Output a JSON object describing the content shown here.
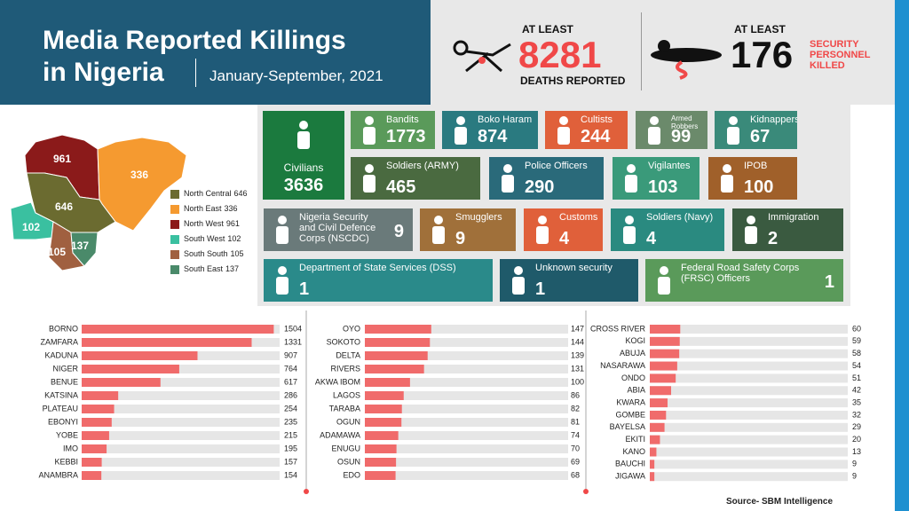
{
  "header": {
    "title_line1": "Media Reported Killings",
    "title_line2": "in Nigeria",
    "subtitle": "January-September, 2021"
  },
  "stats": [
    {
      "prefix": "AT LEAST",
      "value": 8281,
      "label": "DEATHS REPORTED"
    },
    {
      "prefix": "AT LEAST",
      "value": 176,
      "label": "SECURITY PERSONNEL KILLED"
    }
  ],
  "map": {
    "regions": [
      {
        "name": "North West",
        "value": 961,
        "color": "#8b1a1a"
      },
      {
        "name": "North East",
        "value": 336,
        "color": "#f59a30"
      },
      {
        "name": "North Central",
        "value": 646,
        "color": "#6b6b30"
      },
      {
        "name": "South West",
        "value": 102,
        "color": "#3ac0a0"
      },
      {
        "name": "South South",
        "value": 105,
        "color": "#a06040"
      },
      {
        "name": "South East",
        "value": 137,
        "color": "#4a8a6a"
      }
    ]
  },
  "tiles": [
    {
      "label": "Civilians",
      "value": 3636,
      "color": "#1b7a3e"
    },
    {
      "label": "Bandits",
      "value": 1773,
      "color": "#5a9a5a"
    },
    {
      "label": "Boko Haram",
      "value": 874,
      "color": "#2a7a80"
    },
    {
      "label": "Cultists",
      "value": 244,
      "color": "#e0603a"
    },
    {
      "label": "Armed Robbers",
      "value": 99,
      "color": "#6b8a6b"
    },
    {
      "label": "Kidnappers",
      "value": 67,
      "color": "#3a8a7a"
    },
    {
      "label": "Soldiers (ARMY)",
      "value": 465,
      "color": "#4a6a40"
    },
    {
      "label": "Police Officers",
      "value": 290,
      "color": "#2a6a7a"
    },
    {
      "label": "Vigilantes",
      "value": 103,
      "color": "#3a9a7a"
    },
    {
      "label": "IPOB",
      "value": 100,
      "color": "#a0602a"
    },
    {
      "label": "Nigeria Security and Civil Defence Corps (NSCDC)",
      "value": 9,
      "color": "#6a7a7a"
    },
    {
      "label": "Smugglers",
      "value": 9,
      "color": "#a0703a"
    },
    {
      "label": "Customs",
      "value": 4,
      "color": "#e0603a"
    },
    {
      "label": "Soldiers (Navy)",
      "value": 4,
      "color": "#2a8a80"
    },
    {
      "label": "Immigration",
      "value": 2,
      "color": "#3a5a40"
    },
    {
      "label": "Department of State Services (DSS)",
      "value": 1,
      "color": "#2a8a8a"
    },
    {
      "label": "Unknown security",
      "value": 1,
      "color": "#1f5a6a"
    },
    {
      "label": "Federal Road Safety Corps (FRSC) Officers",
      "value": 1,
      "color": "#5a9a5a"
    }
  ],
  "chart_data": [
    {
      "type": "bar",
      "orientation": "horizontal",
      "categories": [
        "BORNO",
        "ZAMFARA",
        "KADUNA",
        "NIGER",
        "BENUE",
        "KATSINA",
        "PLATEAU",
        "EBONYI",
        "YOBE",
        "IMO",
        "KEBBI",
        "ANAMBRA"
      ],
      "values": [
        1504,
        1331,
        907,
        764,
        617,
        286,
        254,
        235,
        215,
        195,
        157,
        154
      ],
      "color": "#f06b6b",
      "xlim": [
        0,
        1550
      ]
    },
    {
      "type": "bar",
      "orientation": "horizontal",
      "categories": [
        "OYO",
        "SOKOTO",
        "DELTA",
        "RIVERS",
        "AKWA IBOM",
        "LAGOS",
        "TARABA",
        "OGUN",
        "ADAMAWA",
        "ENUGU",
        "OSUN",
        "EDO"
      ],
      "values": [
        147,
        144,
        139,
        131,
        100,
        86,
        82,
        81,
        74,
        70,
        69,
        68
      ],
      "color": "#f06b6b",
      "xlim": [
        0,
        450
      ]
    },
    {
      "type": "bar",
      "orientation": "horizontal",
      "categories": [
        "CROSS RIVER",
        "KOGI",
        "ABUJA",
        "NASARAWA",
        "ONDO",
        "ABIA",
        "KWARA",
        "GOMBE",
        "BAYELSA",
        "EKITI",
        "KANO",
        "BAUCHI",
        "JIGAWA"
      ],
      "values": [
        60,
        59,
        58,
        54,
        51,
        42,
        35,
        32,
        29,
        20,
        13,
        9,
        9
      ],
      "color": "#f06b6b",
      "xlim": [
        0,
        390
      ]
    }
  ],
  "source": "Source- SBM Intelligence"
}
